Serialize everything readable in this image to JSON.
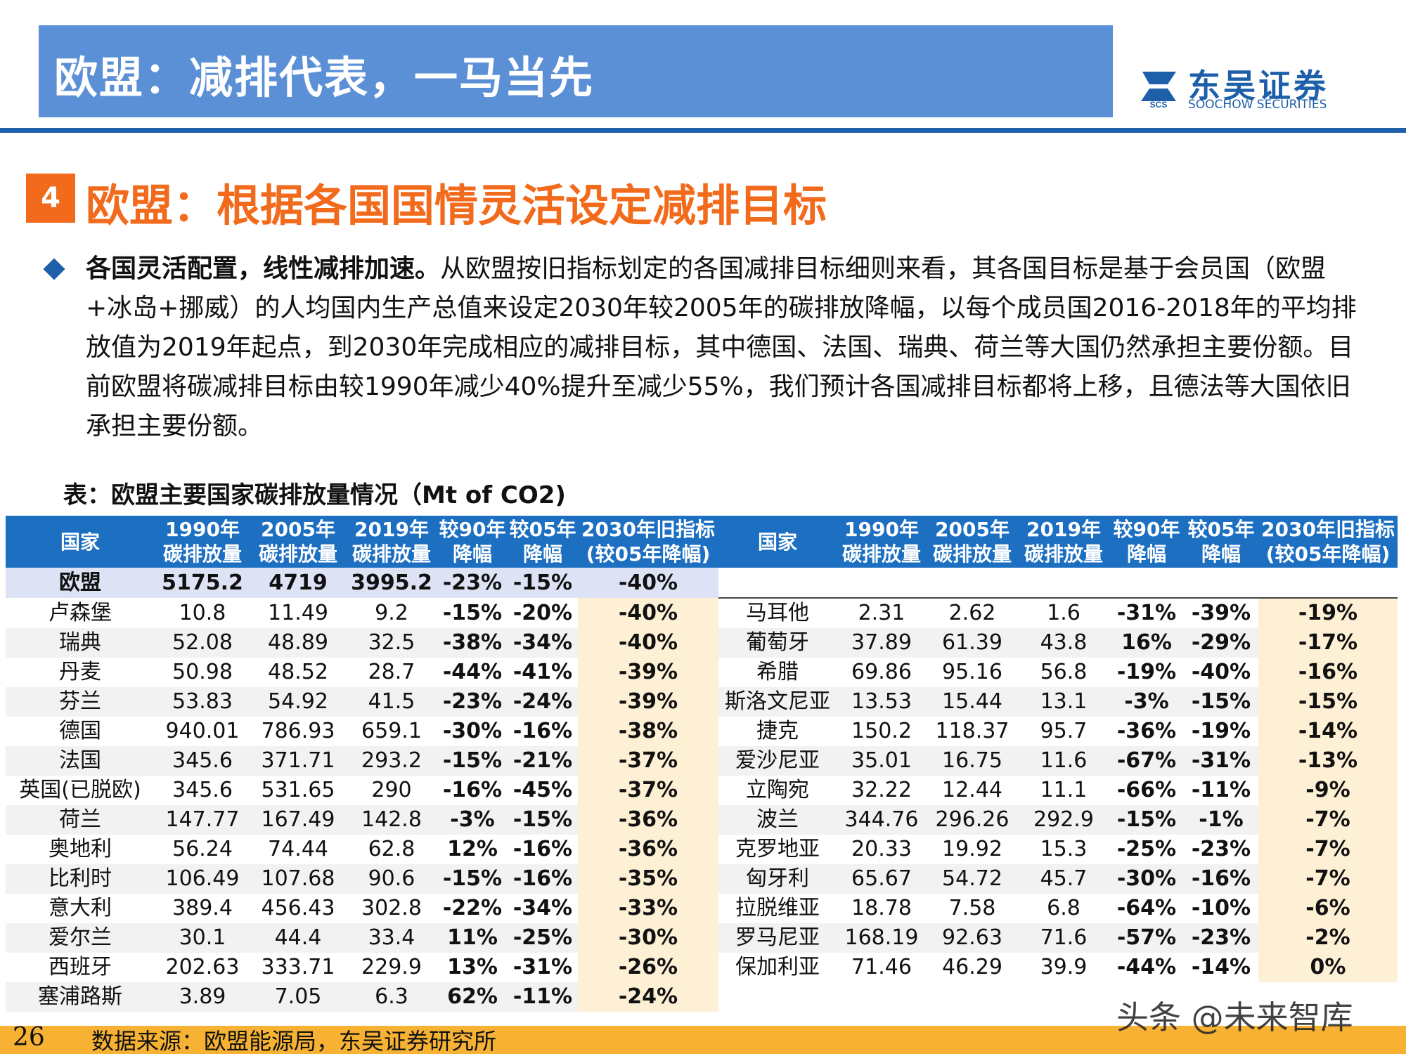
{
  "header": {
    "title": "欧盟：减排代表，一马当先",
    "logo_name": "东吴证券",
    "logo_sub": "SOOCHOW SECURITIES",
    "logo_abbr": "SCS"
  },
  "section": {
    "number": "4",
    "title": "欧盟：根据各国国情灵活设定减排目标"
  },
  "paragraph": {
    "lead": "各国灵活配置，线性减排加速。",
    "body": "从欧盟按旧指标划定的各国减排目标细则来看，其各国目标是基于会员国（欧盟+冰岛+挪威）的人均国内生产总值来设定2030年较2005年的碳排放降幅，以每个成员国2016-2018年的平均排放值为2019年起点，到2030年完成相应的减排目标，其中德国、法国、瑞典、荷兰等大国仍然承担主要份额。目前欧盟将碳减排目标由较1990年减少40%提升至减少55%，我们预计各国减排目标都将上移，且德法等大国依旧承担主要份额。"
  },
  "table": {
    "caption": "表：欧盟主要国家碳排放量情况（Mt of CO2)",
    "headers": [
      [
        "国家"
      ],
      [
        "1990年",
        "碳排放量"
      ],
      [
        "2005年",
        "碳排放量"
      ],
      [
        "2019年",
        "碳排放量"
      ],
      [
        "较90年",
        "降幅"
      ],
      [
        "较05年",
        "降幅"
      ],
      [
        "2030年旧指标",
        "(较05年降幅)"
      ]
    ],
    "eu_row": [
      "欧盟",
      "5175.2",
      "4719",
      "3995.2",
      "-23%",
      "-15%",
      "-40%"
    ],
    "left_rows": [
      [
        "卢森堡",
        "10.8",
        "11.49",
        "9.2",
        "-15%",
        "-20%",
        "-40%"
      ],
      [
        "瑞典",
        "52.08",
        "48.89",
        "32.5",
        "-38%",
        "-34%",
        "-40%"
      ],
      [
        "丹麦",
        "50.98",
        "48.52",
        "28.7",
        "-44%",
        "-41%",
        "-39%"
      ],
      [
        "芬兰",
        "53.83",
        "54.92",
        "41.5",
        "-23%",
        "-24%",
        "-39%"
      ],
      [
        "德国",
        "940.01",
        "786.93",
        "659.1",
        "-30%",
        "-16%",
        "-38%"
      ],
      [
        "法国",
        "345.6",
        "371.71",
        "293.2",
        "-15%",
        "-21%",
        "-37%"
      ],
      [
        "英国(已脱欧)",
        "345.6",
        "531.65",
        "290",
        "-16%",
        "-45%",
        "-37%"
      ],
      [
        "荷兰",
        "147.77",
        "167.49",
        "142.8",
        "-3%",
        "-15%",
        "-36%"
      ],
      [
        "奥地利",
        "56.24",
        "74.44",
        "62.8",
        "12%",
        "-16%",
        "-36%"
      ],
      [
        "比利时",
        "106.49",
        "107.68",
        "90.6",
        "-15%",
        "-16%",
        "-35%"
      ],
      [
        "意大利",
        "389.4",
        "456.43",
        "302.8",
        "-22%",
        "-34%",
        "-33%"
      ],
      [
        "爱尔兰",
        "30.1",
        "44.4",
        "33.4",
        "11%",
        "-25%",
        "-30%"
      ],
      [
        "西班牙",
        "202.63",
        "333.71",
        "229.9",
        "13%",
        "-31%",
        "-26%"
      ],
      [
        "塞浦路斯",
        "3.89",
        "7.05",
        "6.3",
        "62%",
        "-11%",
        "-24%"
      ]
    ],
    "right_rows": [
      [
        "马耳他",
        "2.31",
        "2.62",
        "1.6",
        "-31%",
        "-39%",
        "-19%"
      ],
      [
        "葡萄牙",
        "37.89",
        "61.39",
        "43.8",
        "16%",
        "-29%",
        "-17%"
      ],
      [
        "希腊",
        "69.86",
        "95.16",
        "56.8",
        "-19%",
        "-40%",
        "-16%"
      ],
      [
        "斯洛文尼亚",
        "13.53",
        "15.44",
        "13.1",
        "-3%",
        "-15%",
        "-15%"
      ],
      [
        "捷克",
        "150.2",
        "118.37",
        "95.7",
        "-36%",
        "-19%",
        "-14%"
      ],
      [
        "爱沙尼亚",
        "35.01",
        "16.75",
        "11.6",
        "-67%",
        "-31%",
        "-13%"
      ],
      [
        "立陶宛",
        "32.22",
        "12.44",
        "11.1",
        "-66%",
        "-11%",
        "-9%"
      ],
      [
        "波兰",
        "344.76",
        "296.26",
        "292.9",
        "-15%",
        "-1%",
        "-7%"
      ],
      [
        "克罗地亚",
        "20.33",
        "19.92",
        "15.3",
        "-25%",
        "-23%",
        "-7%"
      ],
      [
        "匈牙利",
        "65.67",
        "54.72",
        "45.7",
        "-30%",
        "-16%",
        "-7%"
      ],
      [
        "拉脱维亚",
        "18.78",
        "7.58",
        "6.8",
        "-64%",
        "-10%",
        "-6%"
      ],
      [
        "罗马尼亚",
        "168.19",
        "92.63",
        "71.6",
        "-57%",
        "-23%",
        "-2%"
      ],
      [
        "保加利亚",
        "71.46",
        "46.29",
        "39.9",
        "-44%",
        "-14%",
        "0%"
      ]
    ]
  },
  "footer": {
    "page_number": "26",
    "source": "数据来源：欧盟能源局，东吴证券研究所",
    "watermark": "头条 @未来智库"
  },
  "colors": {
    "header_bg": "#5b8fd6",
    "brand_blue": "#1d5fa8",
    "section_orange": "#f26a1b",
    "table_header": "#1d6fc2",
    "target_fill": "#fdf0d5",
    "footer_bar": "#f7b233"
  }
}
